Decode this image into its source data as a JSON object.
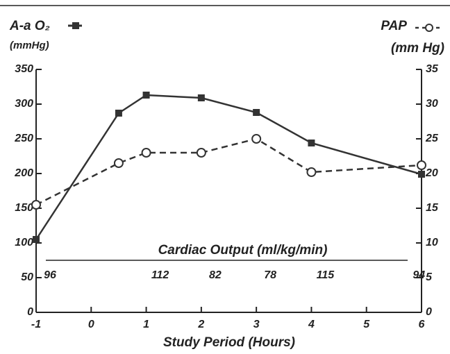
{
  "chart_data": {
    "type": "line",
    "x_label": "Study Period (Hours)",
    "y_label": "(mmHg)",
    "y2_label": "(mm Hg)",
    "x": [
      -1,
      0.5,
      1,
      2,
      3,
      4,
      6
    ],
    "series": [
      {
        "name": "A-a O₂",
        "color": "#333333",
        "marker": "square",
        "style": "solid",
        "values": [
          105,
          287,
          313,
          309,
          288,
          244,
          199
        ]
      },
      {
        "name": "PAP",
        "color": "#333333",
        "marker": "circle",
        "style": "dashed",
        "axis": "y2",
        "values": [
          15.5,
          21.5,
          23,
          23,
          25,
          20.2,
          21.2
        ]
      }
    ],
    "xlim": [
      -1,
      6
    ],
    "xticks": [
      -1,
      0,
      1,
      2,
      3,
      4,
      5,
      6
    ],
    "ylim": [
      0,
      350
    ],
    "yticks": [
      0,
      50,
      100,
      150,
      200,
      250,
      300,
      350
    ],
    "y2lim": [
      0,
      35
    ],
    "y2ticks": [
      0,
      5,
      10,
      15,
      20,
      25,
      30,
      35
    ],
    "annotation": {
      "label": "Cardiac Output (ml/kg/min)",
      "x": [
        -1,
        1,
        2,
        3,
        4,
        5.7
      ],
      "values": [
        96,
        112,
        82,
        78,
        115,
        94
      ]
    }
  }
}
